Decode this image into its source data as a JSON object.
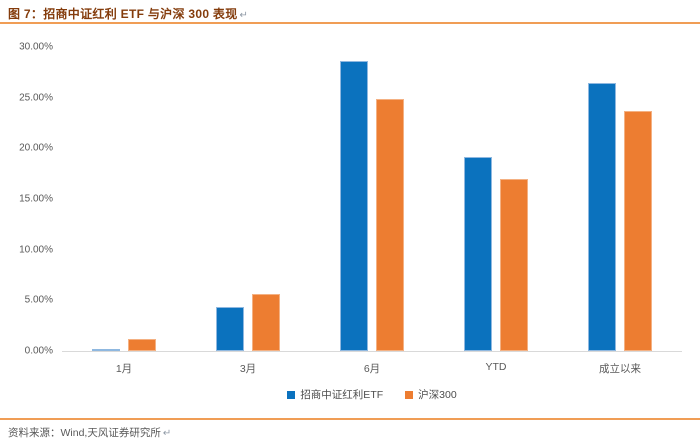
{
  "title": {
    "text": "图 7：招商中证红利 ETF 与沪深 300 表现",
    "pilcrow": "↵"
  },
  "footer": {
    "text": "资料来源：Wind,天风证券研究所",
    "pilcrow": "↵"
  },
  "colors": {
    "title_text": "#843C0C",
    "divider_orange": "#F09D55",
    "series_blue": "#0B72BE",
    "series_blue_border": "#8FB8E0",
    "series_orange": "#ED7D31",
    "series_orange_border": "#F4B183",
    "axis_text": "#595959",
    "axis_line": "#D9D9D9"
  },
  "chart_data": {
    "type": "bar",
    "title": "招商中证红利 ETF 与沪深 300 表现",
    "categories": [
      "1月",
      "3月",
      "6月",
      "YTD",
      "成立以来"
    ],
    "series": [
      {
        "name": "招商中证红利ETF",
        "color": "#0B72BE",
        "border": "#8FB8E0",
        "values": [
          0.1,
          4.3,
          28.6,
          19.1,
          26.4
        ]
      },
      {
        "name": "沪深300",
        "color": "#ED7D31",
        "border": "#F4B183",
        "values": [
          1.2,
          5.6,
          24.9,
          17.0,
          23.7
        ]
      }
    ],
    "xlabel": "",
    "ylabel": "",
    "ylim": [
      0,
      30
    ],
    "ytick_step": 5,
    "yticks": [
      "0.00%",
      "5.00%",
      "10.00%",
      "15.00%",
      "20.00%",
      "25.00%",
      "30.00%"
    ],
    "values_unit": "percent",
    "grid": false,
    "legend_position": "bottom"
  }
}
